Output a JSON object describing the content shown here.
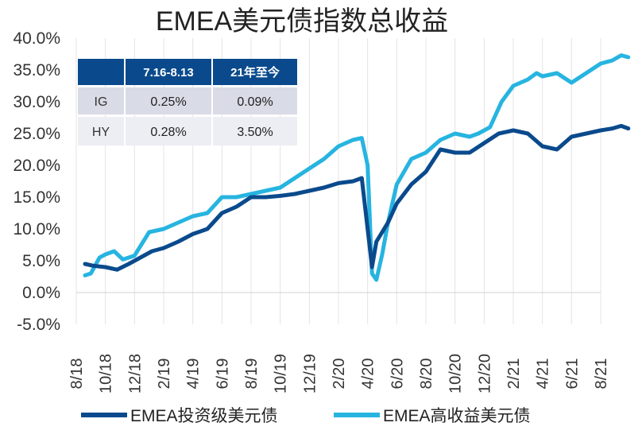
{
  "chart_data": {
    "type": "line",
    "title": "EMEA美元债指数总收益",
    "xlabel": "",
    "ylabel": "",
    "ylim": [
      -5,
      40
    ],
    "y_ticks": [
      "40.0%",
      "35.0%",
      "30.0%",
      "25.0%",
      "20.0%",
      "15.0%",
      "10.0%",
      "5.0%",
      "0.0%",
      "-5.0%"
    ],
    "x_ticks": [
      "8/18",
      "10/18",
      "12/18",
      "2/19",
      "4/19",
      "6/19",
      "8/19",
      "10/19",
      "12/19",
      "2/20",
      "4/20",
      "6/20",
      "8/20",
      "10/20",
      "12/20",
      "2/21",
      "4/21",
      "6/21",
      "8/21"
    ],
    "grid": "vertical",
    "legend_position": "bottom",
    "colors": {
      "ig": "#0a4a8c",
      "hy": "#27b4e0",
      "table_header": "#0a4a8c",
      "table_cell": "#d9dbe6"
    },
    "series": [
      {
        "name": "EMEA投资级美元债",
        "x": [
          0.3,
          0.6,
          1.0,
          1.4,
          1.8,
          2.2,
          2.6,
          3.0,
          3.5,
          4.0,
          4.5,
          5.0,
          5.5,
          6.0,
          6.5,
          7.0,
          7.5,
          8.0,
          8.5,
          9.0,
          9.5,
          9.8,
          10.0,
          10.15,
          10.3,
          10.5,
          10.7,
          11.0,
          11.5,
          12.0,
          12.5,
          13.0,
          13.5,
          14.0,
          14.5,
          15.0,
          15.5,
          16.0,
          16.5,
          17.0,
          17.5,
          18.0,
          18.4,
          18.7,
          18.95
        ],
        "values": [
          4.5,
          4.2,
          4.0,
          3.6,
          4.5,
          5.5,
          6.5,
          7.0,
          8.0,
          9.2,
          10.0,
          12.5,
          13.5,
          15.0,
          15.0,
          15.2,
          15.5,
          16.0,
          16.5,
          17.2,
          17.5,
          18.0,
          10.0,
          4.0,
          8.0,
          9.5,
          11.0,
          14.0,
          17.0,
          19.0,
          22.5,
          22.0,
          22.0,
          23.5,
          25.0,
          25.5,
          25.0,
          23.0,
          22.5,
          24.5,
          25.0,
          25.5,
          25.8,
          26.2,
          25.8
        ]
      },
      {
        "name": "EMEA高收益美元债",
        "x": [
          0.3,
          0.5,
          0.8,
          1.0,
          1.3,
          1.6,
          2.0,
          2.5,
          3.0,
          3.5,
          4.0,
          4.5,
          5.0,
          5.5,
          6.0,
          6.5,
          7.0,
          7.5,
          8.0,
          8.5,
          9.0,
          9.5,
          9.8,
          10.0,
          10.15,
          10.3,
          10.5,
          10.7,
          11.0,
          11.5,
          12.0,
          12.5,
          13.0,
          13.5,
          13.8,
          14.2,
          14.6,
          15.0,
          15.5,
          15.8,
          16.0,
          16.5,
          17.0,
          17.5,
          18.0,
          18.4,
          18.7,
          18.95
        ],
        "values": [
          2.7,
          3.0,
          5.5,
          6.0,
          6.5,
          5.2,
          5.8,
          9.5,
          10.0,
          11.0,
          12.0,
          12.5,
          15.0,
          15.0,
          15.5,
          16.0,
          16.5,
          18.0,
          19.5,
          21.0,
          23.0,
          24.0,
          24.3,
          20.0,
          3.0,
          2.0,
          6.0,
          11.0,
          17.0,
          21.0,
          22.0,
          24.0,
          25.0,
          24.5,
          25.0,
          26.0,
          30.0,
          32.5,
          33.5,
          34.5,
          34.0,
          34.5,
          33.0,
          34.5,
          36.0,
          36.5,
          37.3,
          37.0
        ]
      }
    ],
    "table": {
      "header": [
        "",
        "7.16-8.13",
        "21年至今"
      ],
      "rows": [
        {
          "label": "IG",
          "period": "0.25%",
          "ytd": "0.09%"
        },
        {
          "label": "HY",
          "period": "0.28%",
          "ytd": "3.50%"
        }
      ]
    }
  }
}
